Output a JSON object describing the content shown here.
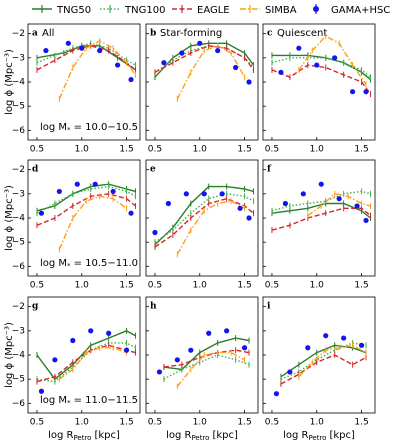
{
  "legend": [
    {
      "name": "TNG50",
      "color": "#2a7d2a",
      "style": "solid"
    },
    {
      "name": "TNG100",
      "color": "#3fb14a",
      "style": "dotted"
    },
    {
      "name": "EAGLE",
      "color": "#d62728",
      "style": "dashed"
    },
    {
      "name": "SIMBA",
      "color": "#ff9f1c",
      "style": "dashdot"
    },
    {
      "name": "GAMA+HSC",
      "color": "#1414ee",
      "style": "markers"
    }
  ],
  "axes": {
    "xlim": [
      0.4,
      1.65
    ],
    "ylim": [
      -6.4,
      -1.6
    ],
    "xticks": [
      0.5,
      {
        "value": 1.0,
        "label": "1.0"
      },
      1.5
    ],
    "yticks": [
      {
        "value": -2,
        "label": "−2"
      },
      {
        "value": -3,
        "label": "−3"
      },
      {
        "value": -4,
        "label": "−4"
      },
      {
        "value": -5,
        "label": "−5"
      },
      {
        "value": -6,
        "label": "−6"
      }
    ],
    "ylabel": "log ϕ (Mpc⁻³)",
    "xlabel": {
      "main": "log R",
      "subscript": "Petro",
      "unit": "[kpc]"
    }
  },
  "chart_data": [
    {
      "type": "line",
      "letter": "a",
      "title": "All",
      "series": [
        {
          "x": [
            0.5,
            0.8,
            1.0,
            1.2,
            1.4,
            1.6
          ],
          "values": [
            -3.0,
            -2.8,
            -2.5,
            -2.5,
            -3.0,
            -3.5
          ]
        },
        {
          "x": [
            0.5,
            0.7,
            0.9,
            1.1,
            1.3,
            1.5,
            1.6
          ],
          "values": [
            -3.2,
            -2.9,
            -2.6,
            -2.4,
            -2.6,
            -3.1,
            -3.3
          ]
        },
        {
          "x": [
            0.5,
            0.7,
            0.9,
            1.1,
            1.3,
            1.5,
            1.6
          ],
          "values": [
            -3.5,
            -3.1,
            -2.7,
            -2.5,
            -2.7,
            -3.2,
            -3.5
          ]
        },
        {
          "x": [
            0.75,
            0.9,
            1.05,
            1.2,
            1.35,
            1.5,
            1.6
          ],
          "values": [
            -4.7,
            -3.4,
            -2.6,
            -2.3,
            -2.6,
            -3.2,
            -3.7
          ]
        },
        {
          "x": [
            0.6,
            0.85,
            1.0,
            1.2,
            1.4,
            1.55
          ],
          "values": [
            -2.7,
            -2.4,
            -2.6,
            -2.7,
            -3.3,
            -3.9
          ]
        }
      ],
      "annotation": {
        "main": "log M",
        "subscript": "*",
        "range": "= 10.0−10.5"
      }
    },
    {
      "type": "line",
      "letter": "b",
      "title": "Star-forming",
      "series": [
        {
          "x": [
            0.5,
            0.7,
            0.9,
            1.1,
            1.3,
            1.5,
            1.6
          ],
          "values": [
            -3.8,
            -3.0,
            -2.5,
            -2.4,
            -2.4,
            -2.8,
            -3.3
          ]
        },
        {
          "x": [
            0.5,
            0.7,
            0.9,
            1.1,
            1.3,
            1.5,
            1.6
          ],
          "values": [
            -3.6,
            -3.1,
            -2.7,
            -2.5,
            -2.6,
            -3.0,
            -3.4
          ]
        },
        {
          "x": [
            0.5,
            0.7,
            0.9,
            1.1,
            1.3,
            1.5,
            1.6
          ],
          "values": [
            -3.6,
            -3.2,
            -2.8,
            -2.5,
            -2.6,
            -3.0,
            -3.5
          ]
        },
        {
          "x": [
            0.75,
            0.9,
            1.05,
            1.2,
            1.35,
            1.5
          ],
          "values": [
            -4.7,
            -3.6,
            -2.7,
            -2.5,
            -2.8,
            -3.8
          ]
        },
        {
          "x": [
            0.6,
            0.8,
            1.0,
            1.2,
            1.4,
            1.55
          ],
          "values": [
            -3.2,
            -2.8,
            -2.4,
            -2.7,
            -3.4,
            -4.0
          ]
        }
      ]
    },
    {
      "type": "line",
      "letter": "c",
      "title": "Quiescent",
      "series": [
        {
          "x": [
            0.5,
            0.7,
            0.9,
            1.1,
            1.3,
            1.5,
            1.6
          ],
          "values": [
            -2.9,
            -2.9,
            -2.9,
            -3.0,
            -3.2,
            -3.6,
            -3.9
          ]
        },
        {
          "x": [
            0.5,
            0.7,
            0.9,
            1.1,
            1.3,
            1.5,
            1.6
          ],
          "values": [
            -3.2,
            -3.0,
            -3.0,
            -3.0,
            -3.2,
            -3.5,
            -3.8
          ]
        },
        {
          "x": [
            0.5,
            0.7,
            0.9,
            1.1,
            1.3,
            1.5,
            1.6
          ],
          "values": [
            -3.5,
            -3.8,
            -3.3,
            -3.4,
            -3.7,
            -4.0,
            -4.5
          ]
        },
        {
          "x": [
            0.8,
            0.95,
            1.1,
            1.25,
            1.4,
            1.55
          ],
          "values": [
            -3.5,
            -2.7,
            -2.1,
            -2.4,
            -3.3,
            -4.1
          ]
        },
        {
          "x": [
            0.6,
            0.8,
            1.0,
            1.2,
            1.4,
            1.55
          ],
          "values": [
            -3.6,
            -2.6,
            -3.3,
            -3.0,
            -4.4,
            -4.4
          ]
        }
      ]
    },
    {
      "type": "line",
      "letter": "d",
      "series": [
        {
          "x": [
            0.5,
            0.7,
            0.9,
            1.1,
            1.3,
            1.5,
            1.6
          ],
          "values": [
            -3.7,
            -3.5,
            -3.0,
            -2.7,
            -2.6,
            -2.8,
            -2.9
          ]
        },
        {
          "x": [
            0.5,
            0.7,
            0.9,
            1.1,
            1.3,
            1.5,
            1.6
          ],
          "values": [
            -3.8,
            -3.4,
            -3.0,
            -2.8,
            -2.7,
            -2.9,
            -3.1
          ]
        },
        {
          "x": [
            0.5,
            0.7,
            0.9,
            1.1,
            1.3,
            1.5,
            1.6
          ],
          "values": [
            -4.3,
            -4.0,
            -3.5,
            -3.1,
            -3.0,
            -3.2,
            -3.5
          ]
        },
        {
          "x": [
            0.75,
            0.9,
            1.05,
            1.2,
            1.35,
            1.5
          ],
          "values": [
            -5.3,
            -4.0,
            -3.3,
            -3.1,
            -3.2,
            -3.6
          ]
        },
        {
          "x": [
            0.55,
            0.75,
            0.95,
            1.15,
            1.35,
            1.55
          ],
          "values": [
            -3.8,
            -2.9,
            -2.6,
            -2.6,
            -2.9,
            -3.8
          ]
        }
      ],
      "annotation": {
        "main": "log M",
        "subscript": "*",
        "range": "= 10.5−11.0"
      }
    },
    {
      "type": "line",
      "letter": "e",
      "series": [
        {
          "x": [
            0.5,
            0.7,
            0.9,
            1.1,
            1.3,
            1.5,
            1.6
          ],
          "values": [
            -5.1,
            -4.4,
            -3.4,
            -2.7,
            -2.7,
            -2.8,
            -2.9
          ]
        },
        {
          "x": [
            0.5,
            0.7,
            0.9,
            1.1,
            1.3,
            1.5,
            1.6
          ],
          "values": [
            -5.0,
            -4.5,
            -3.8,
            -3.2,
            -3.0,
            -3.1,
            -3.3
          ]
        },
        {
          "x": [
            0.5,
            0.7,
            0.9,
            1.1,
            1.3,
            1.5,
            1.6
          ],
          "values": [
            -5.2,
            -4.7,
            -4.0,
            -3.4,
            -3.2,
            -3.5,
            -3.8
          ]
        },
        {
          "x": [
            0.75,
            0.9,
            1.05,
            1.2,
            1.35,
            1.5
          ],
          "values": [
            -5.5,
            -4.5,
            -3.7,
            -3.4,
            -3.3,
            -3.6
          ]
        },
        {
          "x": [
            0.5,
            0.65,
            0.85,
            1.05,
            1.25,
            1.45,
            1.55
          ],
          "values": [
            -4.6,
            -3.4,
            -3.0,
            -3.0,
            -3.0,
            -3.6,
            -4.0
          ]
        }
      ]
    },
    {
      "type": "line",
      "letter": "f",
      "series": [
        {
          "x": [
            0.5,
            0.7,
            0.9,
            1.1,
            1.3,
            1.5,
            1.6
          ],
          "values": [
            -3.8,
            -3.7,
            -3.6,
            -3.4,
            -3.4,
            -3.7,
            -4.0
          ]
        },
        {
          "x": [
            0.5,
            0.7,
            0.9,
            1.1,
            1.3,
            1.5,
            1.6
          ],
          "values": [
            -3.7,
            -3.5,
            -3.4,
            -3.3,
            -3.0,
            -2.9,
            -3.0
          ]
        },
        {
          "x": [
            0.5,
            0.7,
            0.9,
            1.1,
            1.3,
            1.5,
            1.6
          ],
          "values": [
            -4.5,
            -4.3,
            -4.0,
            -3.8,
            -3.6,
            -3.6,
            -3.9
          ]
        },
        {
          "x": [
            0.9,
            1.05,
            1.2,
            1.35,
            1.5,
            1.6
          ],
          "values": [
            -3.9,
            -3.5,
            -3.0,
            -3.1,
            -3.4,
            -3.5
          ]
        },
        {
          "x": [
            0.65,
            0.85,
            1.05,
            1.25,
            1.45,
            1.55
          ],
          "values": [
            -3.4,
            -3.0,
            -2.6,
            -3.2,
            -3.5,
            -4.1
          ]
        }
      ]
    },
    {
      "type": "line",
      "letter": "g",
      "series": [
        {
          "x": [
            0.5,
            0.7,
            0.9,
            1.1,
            1.3,
            1.5,
            1.6
          ],
          "values": [
            -4.0,
            -5.0,
            -4.4,
            -3.6,
            -3.3,
            -3.0,
            -3.2
          ]
        },
        {
          "x": [
            0.5,
            0.7,
            0.9,
            1.1,
            1.3,
            1.5,
            1.6
          ],
          "values": [
            -5.0,
            -5.1,
            -4.5,
            -3.8,
            -3.5,
            -3.5,
            -3.7
          ]
        },
        {
          "x": [
            0.5,
            0.7,
            0.9,
            1.1,
            1.3,
            1.5,
            1.6
          ],
          "values": [
            -5.1,
            -4.9,
            -4.3,
            -3.8,
            -3.6,
            -3.8,
            -3.9
          ]
        },
        {
          "x": [
            0.75,
            0.9,
            1.05,
            1.2,
            1.35,
            1.5
          ],
          "values": [
            -5.0,
            -4.6,
            -3.9,
            -3.7,
            -3.7,
            -3.9
          ]
        },
        {
          "x": [
            0.55,
            0.7,
            0.9,
            1.1,
            1.3,
            1.5
          ],
          "values": [
            -5.5,
            -4.2,
            -3.4,
            -3.0,
            -3.1,
            -3.8
          ]
        }
      ],
      "annotation": {
        "main": "log M",
        "subscript": "*",
        "range": "= 11.0−11.5"
      }
    },
    {
      "type": "line",
      "letter": "h",
      "series": [
        {
          "x": [
            0.6,
            0.8,
            1.0,
            1.2,
            1.4,
            1.55
          ],
          "values": [
            -4.5,
            -4.6,
            -3.9,
            -3.5,
            -3.3,
            -3.4
          ]
        },
        {
          "x": [
            0.6,
            0.8,
            1.0,
            1.2,
            1.4,
            1.55
          ],
          "values": [
            -5.0,
            -4.6,
            -4.3,
            -4.0,
            -4.2,
            -4.4
          ]
        },
        {
          "x": [
            0.6,
            0.8,
            1.0,
            1.2,
            1.4,
            1.55
          ],
          "values": [
            -4.5,
            -4.4,
            -4.1,
            -3.9,
            -3.8,
            -3.9
          ]
        },
        {
          "x": [
            0.75,
            0.9,
            1.05,
            1.2,
            1.35,
            1.5
          ],
          "values": [
            -5.3,
            -4.6,
            -4.0,
            -3.9,
            -3.9,
            -4.2
          ]
        },
        {
          "x": [
            0.55,
            0.75,
            0.9,
            1.1,
            1.3,
            1.5
          ],
          "values": [
            -4.7,
            -4.2,
            -3.8,
            -3.1,
            -3.0,
            -3.7
          ]
        }
      ]
    },
    {
      "type": "line",
      "letter": "i",
      "series": [
        {
          "x": [
            0.6,
            0.8,
            1.0,
            1.2,
            1.4,
            1.55
          ],
          "values": [
            -4.9,
            -4.4,
            -3.9,
            -3.6,
            -3.7,
            -3.9
          ]
        },
        {
          "x": [
            0.6,
            0.8,
            1.0,
            1.2,
            1.4,
            1.55
          ],
          "values": [
            -5.0,
            -4.7,
            -4.2,
            -3.8,
            -3.5,
            -3.6
          ]
        },
        {
          "x": [
            0.6,
            0.8,
            1.0,
            1.2,
            1.4,
            1.55
          ],
          "values": [
            -5.2,
            -4.8,
            -4.3,
            -4.0,
            -4.4,
            -4.1
          ]
        },
        {
          "x": [
            0.8,
            0.95,
            1.1,
            1.25,
            1.4,
            1.55
          ],
          "values": [
            -4.9,
            -4.3,
            -3.8,
            -3.7,
            -3.6,
            -3.9
          ]
        },
        {
          "x": [
            0.55,
            0.7,
            0.9,
            1.1,
            1.3,
            1.5
          ],
          "values": [
            -5.6,
            -4.7,
            -3.7,
            -3.2,
            -3.3,
            -3.6
          ]
        }
      ]
    }
  ]
}
